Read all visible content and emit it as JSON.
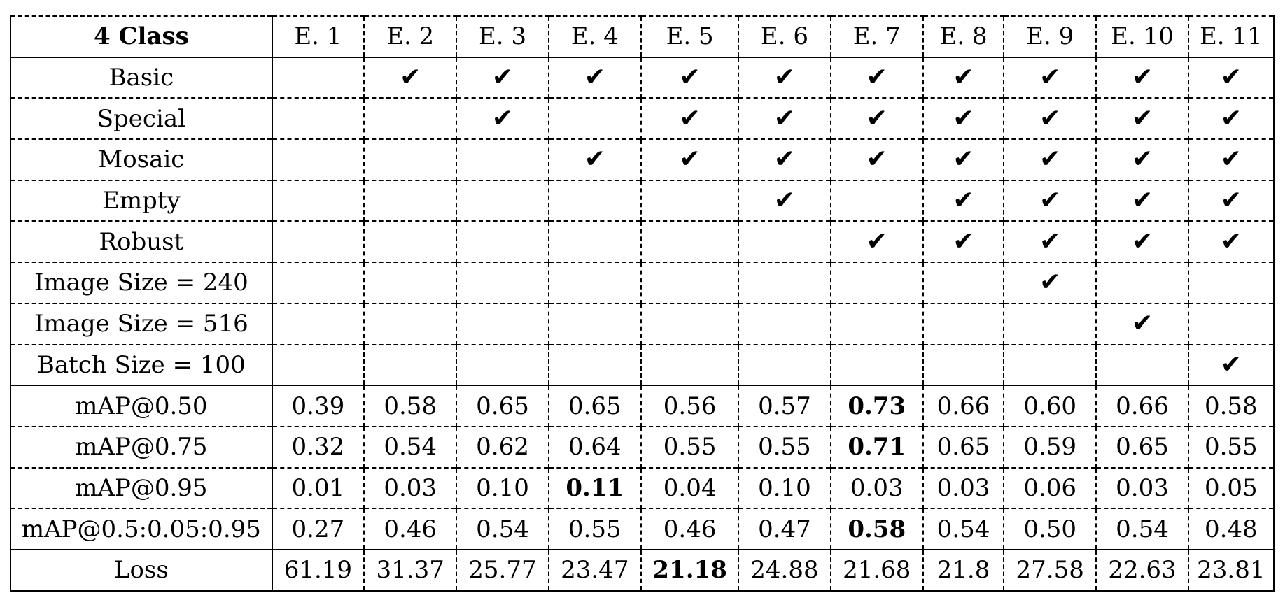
{
  "table": {
    "corner_label": "4 Class",
    "columns": [
      "E. 1",
      "E. 2",
      "E. 3",
      "E. 4",
      "E. 5",
      "E. 6",
      "E. 7",
      "E. 8",
      "E. 9",
      "E. 10",
      "E. 11"
    ],
    "check_symbol": "✔",
    "config_rows": [
      {
        "label": "Basic",
        "checks": [
          false,
          true,
          true,
          true,
          true,
          true,
          true,
          true,
          true,
          true,
          true
        ]
      },
      {
        "label": "Special",
        "checks": [
          false,
          false,
          true,
          false,
          true,
          true,
          true,
          true,
          true,
          true,
          true
        ]
      },
      {
        "label": "Mosaic",
        "checks": [
          false,
          false,
          false,
          true,
          true,
          true,
          true,
          true,
          true,
          true,
          true
        ]
      },
      {
        "label": "Empty",
        "checks": [
          false,
          false,
          false,
          false,
          false,
          true,
          false,
          true,
          true,
          true,
          true
        ]
      },
      {
        "label": "Robust",
        "checks": [
          false,
          false,
          false,
          false,
          false,
          false,
          true,
          true,
          true,
          true,
          true
        ]
      },
      {
        "label": "Image Size = 240",
        "checks": [
          false,
          false,
          false,
          false,
          false,
          false,
          false,
          false,
          true,
          false,
          false
        ]
      },
      {
        "label": "Image Size = 516",
        "checks": [
          false,
          false,
          false,
          false,
          false,
          false,
          false,
          false,
          false,
          true,
          false
        ]
      },
      {
        "label": "Batch Size = 100",
        "checks": [
          false,
          false,
          false,
          false,
          false,
          false,
          false,
          false,
          false,
          false,
          true
        ]
      }
    ],
    "metric_rows": [
      {
        "label": "mAP@0.50",
        "values": [
          "0.39",
          "0.58",
          "0.65",
          "0.65",
          "0.56",
          "0.57",
          "0.73",
          "0.66",
          "0.60",
          "0.66",
          "0.58"
        ],
        "bold_index": 6
      },
      {
        "label": "mAP@0.75",
        "values": [
          "0.32",
          "0.54",
          "0.62",
          "0.64",
          "0.55",
          "0.55",
          "0.71",
          "0.65",
          "0.59",
          "0.65",
          "0.55"
        ],
        "bold_index": 6
      },
      {
        "label": "mAP@0.95",
        "values": [
          "0.01",
          "0.03",
          "0.10",
          "0.11",
          "0.04",
          "0.10",
          "0.03",
          "0.03",
          "0.06",
          "0.03",
          "0.05"
        ],
        "bold_index": 3
      },
      {
        "label": "mAP@0.5:0.05:0.95",
        "values": [
          "0.27",
          "0.46",
          "0.54",
          "0.55",
          "0.46",
          "0.47",
          "0.58",
          "0.54",
          "0.50",
          "0.54",
          "0.48"
        ],
        "bold_index": 6
      }
    ],
    "loss_row": {
      "label": "Loss",
      "values": [
        "61.19",
        "31.37",
        "25.77",
        "23.47",
        "21.18",
        "24.88",
        "21.68",
        "21.8",
        "27.58",
        "22.63",
        "23.81"
      ],
      "bold_index": 4
    }
  }
}
